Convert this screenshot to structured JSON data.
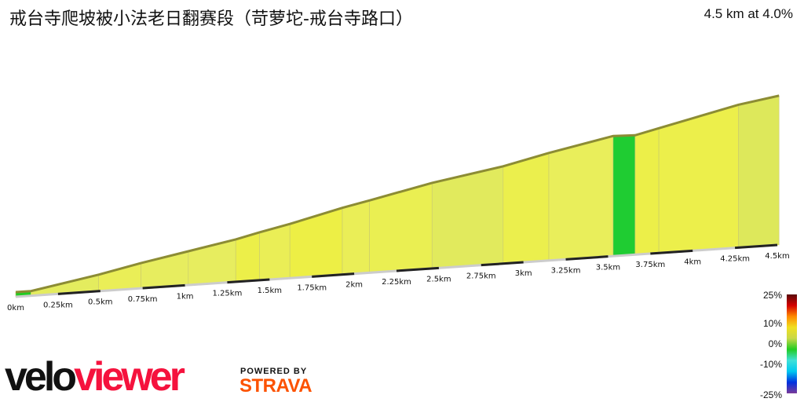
{
  "header": {
    "title": "戒台寺爬坡被小法老日翻赛段（苛萝坨-戒台寺路口）",
    "summary": "4.5 km at 4.0%"
  },
  "branding": {
    "logo_velo": "velo",
    "logo_viewer": "viewer",
    "powered_by": "POWERED BY",
    "strava": "STRAVA",
    "velo_color": "#111111",
    "viewer_color": "#f5123d",
    "strava_color": "#fc5200"
  },
  "chart_data": {
    "type": "area",
    "title": "4.5 km at 4.0%",
    "xlabel": "",
    "ylabel": "",
    "xlim": [
      0,
      4.5
    ],
    "x_ticks": [
      "0km",
      "0.25km",
      "0.5km",
      "0.75km",
      "1km",
      "1.25km",
      "1.5km",
      "1.75km",
      "2km",
      "2.25km",
      "2.5km",
      "2.75km",
      "3km",
      "3.25km",
      "3.5km",
      "3.75km",
      "4km",
      "4.25km",
      "4.5km"
    ],
    "profile": {
      "distance_km": [
        0,
        0.09,
        0.49,
        0.74,
        1.02,
        1.3,
        1.44,
        1.62,
        1.93,
        2.09,
        2.46,
        2.88,
        3.15,
        3.53,
        3.66,
        3.8,
        4.27,
        4.51
      ],
      "elevation_gain_m": [
        0,
        0,
        15,
        26,
        37,
        48,
        55,
        63,
        79,
        86,
        103,
        118,
        131,
        147,
        146,
        153,
        176,
        184
      ]
    },
    "gradient_legend": {
      "labels": [
        "25%",
        "10%",
        "0%",
        "-10%",
        "-25%"
      ],
      "range": [
        -25,
        25
      ],
      "colors": [
        "#5a0a0a",
        "#d40000",
        "#ff8a00",
        "#f0e020",
        "#c8d848",
        "#22cc22",
        "#40e0d8",
        "#00c8f0",
        "#0030e0",
        "#7a3a9a"
      ]
    }
  }
}
